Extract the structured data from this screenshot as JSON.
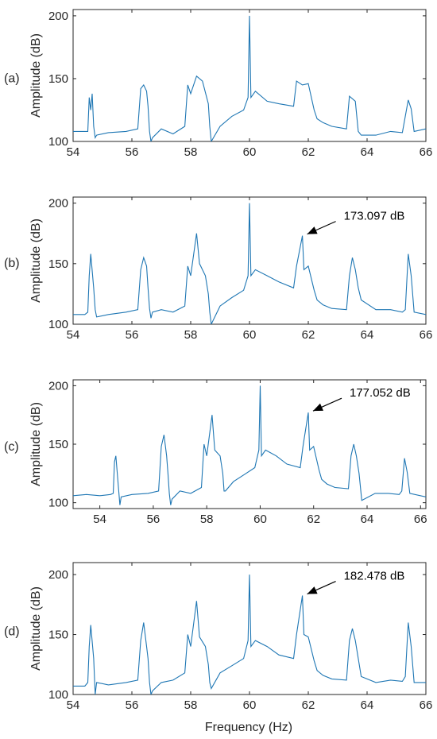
{
  "figure": {
    "xlabel": "Frequency (Hz)",
    "line_color": "#1f77b4"
  },
  "chart_data": [
    {
      "type": "line",
      "panel_label": "(a)",
      "ylabel": "Amplitude (dB)",
      "xlim": [
        54,
        66
      ],
      "ylim": [
        100,
        205
      ],
      "xticks": [
        54,
        56,
        58,
        60,
        62,
        64,
        66
      ],
      "yticks": [
        100,
        150,
        200
      ],
      "grid": false,
      "annotation": null,
      "series": [
        {
          "x": [
            54.0,
            54.5,
            54.55,
            54.6,
            54.65,
            54.7,
            54.75,
            54.8,
            55.2,
            55.8,
            56.2,
            56.3,
            56.4,
            56.5,
            56.55,
            56.6,
            56.65,
            56.7,
            57.0,
            57.4,
            57.8,
            57.9,
            58.0,
            58.2,
            58.4,
            58.6,
            58.65,
            58.7,
            59.0,
            59.4,
            59.8,
            59.95,
            60.0,
            60.05,
            60.2,
            60.6,
            61.0,
            61.5,
            61.6,
            61.8,
            62.0,
            62.2,
            62.3,
            62.5,
            62.8,
            63.3,
            63.4,
            63.6,
            63.7,
            63.8,
            64.3,
            64.8,
            65.2,
            65.4,
            65.5,
            65.6,
            66.0
          ],
          "y": [
            108,
            108,
            135,
            125,
            138,
            112,
            103,
            105,
            107,
            108,
            110,
            142,
            145,
            140,
            128,
            108,
            100,
            103,
            110,
            106,
            112,
            145,
            138,
            152,
            148,
            130,
            112,
            100,
            112,
            120,
            125,
            135,
            200,
            135,
            140,
            132,
            130,
            128,
            148,
            145,
            146,
            125,
            118,
            115,
            112,
            110,
            136,
            132,
            108,
            105,
            105,
            108,
            107,
            133,
            126,
            108,
            110
          ]
        }
      ]
    },
    {
      "type": "line",
      "panel_label": "(b)",
      "ylabel": "Amplitude (dB)",
      "xlim": [
        54,
        66
      ],
      "ylim": [
        100,
        205
      ],
      "xticks": [
        54,
        56,
        58,
        60,
        62,
        64,
        66
      ],
      "yticks": [
        100,
        150,
        200
      ],
      "grid": false,
      "annotation": {
        "text": "173.097 dB",
        "x": 61.8,
        "y": 173.097
      },
      "series": [
        {
          "x": [
            54.0,
            54.4,
            54.5,
            54.55,
            54.6,
            54.7,
            54.75,
            54.8,
            55.2,
            55.8,
            56.2,
            56.3,
            56.4,
            56.5,
            56.55,
            56.6,
            56.65,
            56.7,
            57.0,
            57.4,
            57.8,
            57.9,
            58.0,
            58.2,
            58.3,
            58.5,
            58.6,
            58.65,
            58.7,
            59.0,
            59.4,
            59.8,
            59.95,
            60.0,
            60.05,
            60.2,
            60.6,
            61.0,
            61.5,
            61.6,
            61.8,
            61.85,
            62.0,
            62.2,
            62.3,
            62.5,
            62.8,
            63.3,
            63.4,
            63.5,
            63.6,
            63.7,
            63.8,
            64.3,
            64.8,
            65.2,
            65.3,
            65.4,
            65.5,
            65.6,
            66.0
          ],
          "y": [
            108,
            108,
            110,
            140,
            158,
            130,
            112,
            106,
            108,
            110,
            112,
            145,
            155,
            148,
            130,
            113,
            105,
            110,
            112,
            110,
            115,
            148,
            140,
            175,
            150,
            140,
            125,
            110,
            100,
            115,
            122,
            128,
            140,
            200,
            140,
            145,
            140,
            135,
            130,
            148,
            173.097,
            145,
            148,
            128,
            120,
            116,
            113,
            112,
            140,
            155,
            145,
            130,
            120,
            112,
            112,
            110,
            112,
            158,
            140,
            110,
            108
          ]
        }
      ]
    },
    {
      "type": "line",
      "panel_label": "(c)",
      "ylabel": "Amplitude (dB)",
      "xlim": [
        53,
        66.2
      ],
      "ylim": [
        95,
        205
      ],
      "xticks": [
        54,
        56,
        58,
        60,
        62,
        64,
        66
      ],
      "yticks": [
        100,
        150,
        200
      ],
      "grid": false,
      "annotation": {
        "text": "177.052 dB",
        "x": 61.8,
        "y": 177.052
      },
      "series": [
        {
          "x": [
            53.0,
            53.5,
            54.0,
            54.4,
            54.5,
            54.55,
            54.6,
            54.7,
            54.75,
            54.8,
            55.2,
            55.8,
            56.2,
            56.3,
            56.4,
            56.5,
            56.55,
            56.6,
            56.65,
            56.7,
            57.0,
            57.4,
            57.8,
            57.9,
            58.0,
            58.2,
            58.3,
            58.5,
            58.6,
            58.65,
            58.7,
            59.0,
            59.4,
            59.8,
            59.95,
            60.0,
            60.05,
            60.2,
            60.6,
            61.0,
            61.5,
            61.6,
            61.8,
            61.85,
            62.0,
            62.2,
            62.3,
            62.5,
            62.8,
            63.3,
            63.4,
            63.5,
            63.6,
            63.7,
            63.8,
            64.3,
            64.8,
            65.2,
            65.3,
            65.4,
            65.5,
            65.6,
            66.2
          ],
          "y": [
            106,
            107,
            106,
            107,
            108,
            135,
            140,
            112,
            98,
            105,
            107,
            108,
            110,
            148,
            158,
            140,
            125,
            108,
            98,
            103,
            110,
            108,
            113,
            150,
            140,
            175,
            145,
            140,
            125,
            110,
            110,
            118,
            124,
            130,
            145,
            200,
            140,
            145,
            140,
            133,
            130,
            148,
            177.052,
            145,
            148,
            128,
            120,
            116,
            113,
            112,
            140,
            150,
            140,
            125,
            102,
            108,
            108,
            107,
            110,
            138,
            126,
            108,
            105
          ]
        }
      ]
    },
    {
      "type": "line",
      "panel_label": "(d)",
      "ylabel": "Amplitude (dB)",
      "xlim": [
        54,
        66
      ],
      "ylim": [
        100,
        210
      ],
      "xticks": [
        54,
        56,
        58,
        60,
        62,
        64,
        66
      ],
      "yticks": [
        100,
        150,
        200
      ],
      "grid": false,
      "annotation": {
        "text": "182.478 dB",
        "x": 61.8,
        "y": 182.478
      },
      "series": [
        {
          "x": [
            54.0,
            54.4,
            54.5,
            54.55,
            54.6,
            54.7,
            54.75,
            54.8,
            55.2,
            55.8,
            56.2,
            56.3,
            56.4,
            56.5,
            56.55,
            56.6,
            56.65,
            56.7,
            57.0,
            57.4,
            57.8,
            57.9,
            58.0,
            58.2,
            58.3,
            58.5,
            58.6,
            58.65,
            58.7,
            59.0,
            59.4,
            59.8,
            59.95,
            60.0,
            60.05,
            60.2,
            60.6,
            61.0,
            61.5,
            61.6,
            61.8,
            61.85,
            62.0,
            62.2,
            62.3,
            62.5,
            62.8,
            63.3,
            63.4,
            63.5,
            63.6,
            63.7,
            63.8,
            64.3,
            64.8,
            65.2,
            65.3,
            65.4,
            65.5,
            65.6,
            66.0
          ],
          "y": [
            107,
            107,
            110,
            140,
            158,
            130,
            100,
            110,
            108,
            110,
            112,
            145,
            160,
            140,
            130,
            110,
            100,
            103,
            110,
            112,
            118,
            150,
            140,
            178,
            148,
            140,
            125,
            110,
            105,
            118,
            124,
            130,
            145,
            200,
            140,
            145,
            140,
            133,
            130,
            150,
            182.478,
            150,
            148,
            128,
            120,
            116,
            113,
            112,
            145,
            155,
            145,
            130,
            115,
            110,
            112,
            111,
            115,
            160,
            140,
            110,
            110
          ]
        }
      ]
    }
  ]
}
